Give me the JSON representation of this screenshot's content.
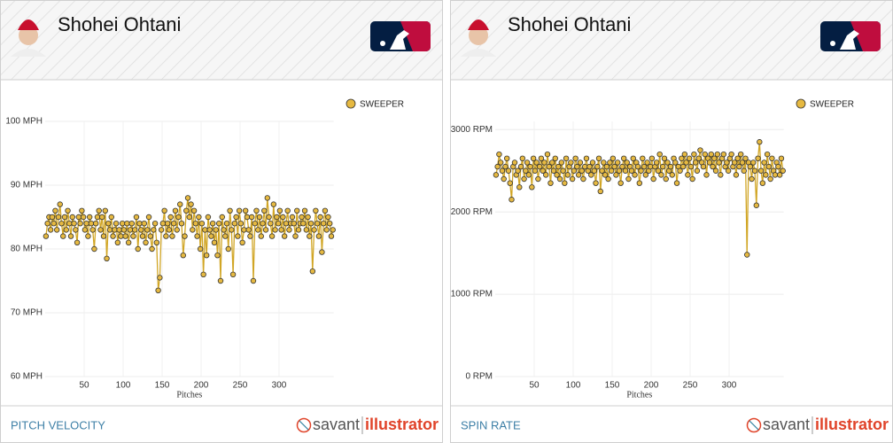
{
  "brand": {
    "left": "savant",
    "right": "illustrator"
  },
  "chart_data": [
    {
      "type": "line",
      "title": "Shohei Ohtani",
      "caption": "PITCH VELOCITY",
      "xlabel": "Pitches",
      "xlim": [
        0,
        370
      ],
      "xticks": [
        50,
        100,
        150,
        200,
        250,
        300
      ],
      "ylim": [
        60,
        100
      ],
      "yticks": [
        {
          "value": 60,
          "label": "60 MPH"
        },
        {
          "value": 70,
          "label": "70 MPH"
        },
        {
          "value": 80,
          "label": "80 MPH"
        },
        {
          "value": 90,
          "label": "90 MPH"
        },
        {
          "value": 100,
          "label": "100 MPH"
        }
      ],
      "grid": true,
      "x": [
        1,
        3,
        5,
        7,
        9,
        11,
        13,
        15,
        17,
        19,
        21,
        23,
        25,
        27,
        29,
        31,
        33,
        35,
        37,
        39,
        41,
        43,
        45,
        47,
        49,
        51,
        53,
        55,
        57,
        59,
        61,
        63,
        65,
        67,
        69,
        71,
        73,
        75,
        77,
        79,
        81,
        83,
        85,
        87,
        89,
        91,
        93,
        95,
        97,
        99,
        101,
        103,
        105,
        107,
        109,
        111,
        113,
        115,
        117,
        119,
        121,
        123,
        125,
        127,
        129,
        131,
        133,
        135,
        137,
        139,
        141,
        143,
        145,
        147,
        149,
        151,
        153,
        155,
        157,
        159,
        161,
        163,
        165,
        167,
        169,
        171,
        173,
        175,
        177,
        179,
        181,
        183,
        185,
        187,
        189,
        191,
        193,
        195,
        197,
        199,
        201,
        203,
        205,
        207,
        209,
        211,
        213,
        215,
        217,
        219,
        221,
        223,
        225,
        227,
        229,
        231,
        233,
        235,
        237,
        239,
        241,
        243,
        245,
        247,
        249,
        251,
        253,
        255,
        257,
        259,
        261,
        263,
        265,
        267,
        269,
        271,
        273,
        275,
        277,
        279,
        281,
        283,
        285,
        287,
        289,
        291,
        293,
        295,
        297,
        299,
        301,
        303,
        305,
        307,
        309,
        311,
        313,
        315,
        317,
        319,
        321,
        323,
        325,
        327,
        329,
        331,
        333,
        335,
        337,
        339,
        341,
        343,
        345,
        347,
        349,
        351,
        353,
        355,
        357,
        359,
        361,
        363,
        365,
        367,
        369
      ],
      "series": [
        {
          "name": "SWEEPER",
          "color": "#e6b941",
          "values": [
            82,
            84,
            85,
            83,
            85,
            84,
            86,
            83,
            85,
            87,
            84,
            82,
            85,
            83,
            86,
            84,
            82,
            85,
            84,
            83,
            81,
            85,
            84,
            86,
            85,
            83,
            84,
            82,
            85,
            84,
            83,
            80,
            84,
            85,
            86,
            83,
            85,
            82,
            86,
            78.5,
            84,
            83,
            85,
            82,
            83,
            84,
            81,
            83,
            82,
            84,
            83,
            82,
            84,
            81,
            83,
            84,
            82,
            83,
            85,
            80,
            84,
            83,
            82,
            84,
            81,
            83,
            85,
            82,
            80,
            83,
            84,
            81,
            73.5,
            75.5,
            83,
            84,
            86,
            82,
            84,
            83,
            85,
            82,
            84,
            86,
            83,
            85,
            87,
            84,
            79,
            82,
            86,
            88,
            85,
            87,
            83,
            86,
            84,
            82,
            85,
            80,
            84,
            76,
            83,
            79,
            85,
            83,
            82,
            84,
            81,
            83,
            79,
            84,
            75,
            85,
            83,
            82,
            84,
            80,
            86,
            83,
            76,
            84,
            85,
            82,
            86,
            84,
            81,
            83,
            86,
            85,
            83,
            82,
            85,
            75,
            84,
            86,
            83,
            85,
            82,
            84,
            86,
            83,
            88,
            85,
            84,
            82,
            87,
            83,
            85,
            84,
            86,
            83,
            85,
            82,
            84,
            86,
            83,
            84,
            85,
            84,
            82,
            86,
            83,
            84,
            85,
            84,
            86,
            83,
            85,
            82,
            84,
            76.5,
            83,
            86,
            84,
            82,
            85,
            79.5,
            84,
            86,
            83,
            85,
            84,
            82,
            83
          ]
        }
      ]
    },
    {
      "type": "line",
      "title": "Shohei Ohtani",
      "caption": "SPIN RATE",
      "xlabel": "Pitches",
      "xlim": [
        0,
        370
      ],
      "xticks": [
        50,
        100,
        150,
        200,
        250,
        300
      ],
      "ylim": [
        0,
        3100
      ],
      "yticks": [
        {
          "value": 0,
          "label": "0 RPM"
        },
        {
          "value": 1000,
          "label": "1000 RPM"
        },
        {
          "value": 2000,
          "label": "2000 RPM"
        },
        {
          "value": 3000,
          "label": "3000 RPM"
        }
      ],
      "grid": true,
      "x": [
        1,
        3,
        5,
        7,
        9,
        11,
        13,
        15,
        17,
        19,
        21,
        23,
        25,
        27,
        29,
        31,
        33,
        35,
        37,
        39,
        41,
        43,
        45,
        47,
        49,
        51,
        53,
        55,
        57,
        59,
        61,
        63,
        65,
        67,
        69,
        71,
        73,
        75,
        77,
        79,
        81,
        83,
        85,
        87,
        89,
        91,
        93,
        95,
        97,
        99,
        101,
        103,
        105,
        107,
        109,
        111,
        113,
        115,
        117,
        119,
        121,
        123,
        125,
        127,
        129,
        131,
        133,
        135,
        137,
        139,
        141,
        143,
        145,
        147,
        149,
        151,
        153,
        155,
        157,
        159,
        161,
        163,
        165,
        167,
        169,
        171,
        173,
        175,
        177,
        179,
        181,
        183,
        185,
        187,
        189,
        191,
        193,
        195,
        197,
        199,
        201,
        203,
        205,
        207,
        209,
        211,
        213,
        215,
        217,
        219,
        221,
        223,
        225,
        227,
        229,
        231,
        233,
        235,
        237,
        239,
        241,
        243,
        245,
        247,
        249,
        251,
        253,
        255,
        257,
        259,
        261,
        263,
        265,
        267,
        269,
        271,
        273,
        275,
        277,
        279,
        281,
        283,
        285,
        287,
        289,
        291,
        293,
        295,
        297,
        299,
        301,
        303,
        305,
        307,
        309,
        311,
        313,
        315,
        317,
        319,
        321,
        323,
        325,
        327,
        329,
        331,
        333,
        335,
        337,
        339,
        341,
        343,
        345,
        347,
        349,
        351,
        353,
        355,
        357,
        359,
        361,
        363,
        365,
        367,
        369
      ],
      "series": [
        {
          "name": "SWEEPER",
          "color": "#e6b941",
          "values": [
            2450,
            2550,
            2700,
            2600,
            2500,
            2400,
            2550,
            2650,
            2500,
            2350,
            2150,
            2550,
            2600,
            2450,
            2500,
            2300,
            2550,
            2650,
            2400,
            2500,
            2600,
            2450,
            2550,
            2300,
            2650,
            2500,
            2600,
            2400,
            2550,
            2650,
            2500,
            2600,
            2450,
            2700,
            2550,
            2350,
            2600,
            2500,
            2650,
            2450,
            2550,
            2400,
            2600,
            2500,
            2350,
            2650,
            2450,
            2550,
            2600,
            2400,
            2500,
            2650,
            2550,
            2450,
            2600,
            2500,
            2400,
            2550,
            2650,
            2500,
            2550,
            2450,
            2600,
            2500,
            2350,
            2550,
            2650,
            2250,
            2500,
            2600,
            2450,
            2550,
            2400,
            2600,
            2500,
            2650,
            2550,
            2450,
            2600,
            2500,
            2350,
            2550,
            2650,
            2500,
            2600,
            2400,
            2550,
            2500,
            2650,
            2450,
            2600,
            2550,
            2350,
            2500,
            2650,
            2550,
            2450,
            2600,
            2500,
            2550,
            2650,
            2400,
            2550,
            2600,
            2500,
            2700,
            2450,
            2550,
            2650,
            2400,
            2600,
            2500,
            2550,
            2450,
            2650,
            2600,
            2350,
            2550,
            2500,
            2650,
            2550,
            2700,
            2600,
            2450,
            2650,
            2550,
            2400,
            2700,
            2600,
            2500,
            2650,
            2750,
            2600,
            2550,
            2700,
            2450,
            2650,
            2600,
            2700,
            2550,
            2650,
            2500,
            2700,
            2600,
            2450,
            2650,
            2700,
            2550,
            2600,
            2500,
            2650,
            2700,
            2550,
            2600,
            2450,
            2650,
            2550,
            2700,
            2600,
            2500,
            2650,
            1480,
            2600,
            2550,
            2400,
            2600,
            2500,
            2080,
            2650,
            2850,
            2500,
            2350,
            2600,
            2450,
            2700,
            2550,
            2400,
            2650,
            2500,
            2450,
            2600,
            2550,
            2450,
            2650,
            2500
          ]
        }
      ]
    }
  ]
}
